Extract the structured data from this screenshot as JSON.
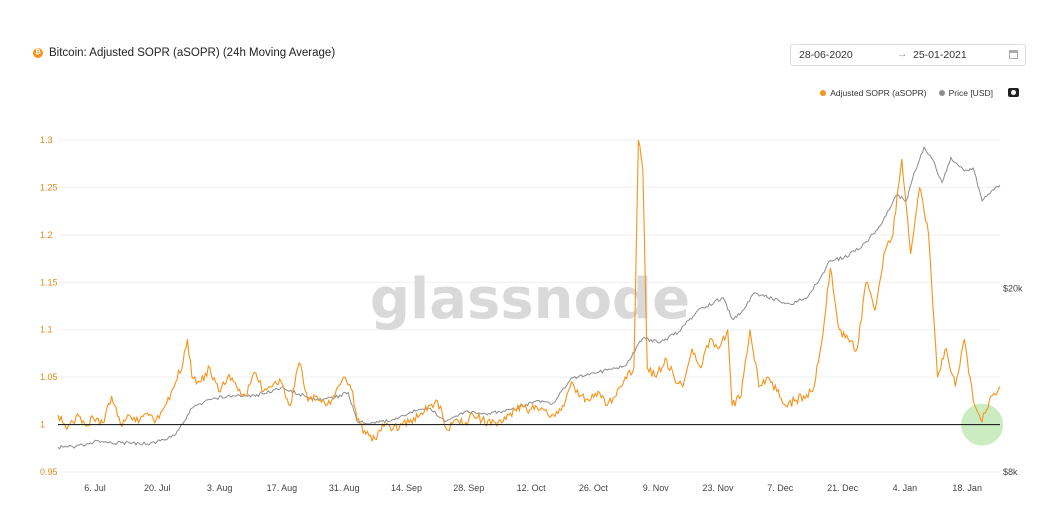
{
  "header": {
    "title": "Bitcoin: Adjusted SOPR (aSOPR) (24h Moving Average)",
    "btc_symbol": "₿"
  },
  "date_range": {
    "start": "28-06-2020",
    "arrow": "→",
    "end": "25-01-2021"
  },
  "watermark": "glassnode",
  "colors": {
    "sopr": "#f7931a",
    "price": "#8c8c8c",
    "baseline": "#222222",
    "highlight": "#9fdc8c",
    "axis_left": "#e08a1a"
  },
  "chart_data": {
    "type": "line",
    "title": "Bitcoin: Adjusted SOPR (aSOPR) (24h Moving Average)",
    "x_range": [
      "2020-06-28",
      "2021-01-25"
    ],
    "x_ticks": [
      "6. Jul",
      "20. Jul",
      "3. Aug",
      "17. Aug",
      "31. Aug",
      "14. Sep",
      "28. Sep",
      "12. Oct",
      "26. Oct",
      "9. Nov",
      "23. Nov",
      "7. Dec",
      "21. Dec",
      "4. Jan",
      "18. Jan"
    ],
    "y_left": {
      "ticks": [
        "0.95",
        "1",
        "1.05",
        "1.1",
        "1.15",
        "1.2",
        "1.25",
        "1.3"
      ],
      "ylim": [
        0.95,
        1.3
      ]
    },
    "y_right": {
      "ticks": [
        "$8k",
        "$20k"
      ],
      "ylim": [
        8000,
        42000
      ],
      "scale": "log"
    },
    "baseline": 1,
    "legend": {
      "placement": "top-right"
    },
    "grid": "horizontal",
    "highlight": {
      "x": "2021-01-21",
      "y": 1.0
    },
    "series": [
      {
        "name": "Adjusted SOPR (aSOPR)",
        "axis": "left",
        "points": [
          [
            "2020-06-28",
            1.01
          ],
          [
            "2020-06-30",
            0.995
          ],
          [
            "2020-07-02",
            1.008
          ],
          [
            "2020-07-04",
            1.0
          ],
          [
            "2020-07-06",
            1.006
          ],
          [
            "2020-07-08",
            1.002
          ],
          [
            "2020-07-10",
            1.03
          ],
          [
            "2020-07-12",
            1.0
          ],
          [
            "2020-07-14",
            1.01
          ],
          [
            "2020-07-16",
            1.002
          ],
          [
            "2020-07-18",
            1.012
          ],
          [
            "2020-07-20",
            1.005
          ],
          [
            "2020-07-22",
            1.02
          ],
          [
            "2020-07-24",
            1.04
          ],
          [
            "2020-07-26",
            1.065
          ],
          [
            "2020-07-27",
            1.09
          ],
          [
            "2020-07-28",
            1.05
          ],
          [
            "2020-07-30",
            1.045
          ],
          [
            "2020-08-01",
            1.06
          ],
          [
            "2020-08-03",
            1.035
          ],
          [
            "2020-08-05",
            1.05
          ],
          [
            "2020-08-07",
            1.04
          ],
          [
            "2020-08-09",
            1.03
          ],
          [
            "2020-08-11",
            1.055
          ],
          [
            "2020-08-13",
            1.035
          ],
          [
            "2020-08-15",
            1.04
          ],
          [
            "2020-08-17",
            1.045
          ],
          [
            "2020-08-19",
            1.02
          ],
          [
            "2020-08-21",
            1.065
          ],
          [
            "2020-08-23",
            1.025
          ],
          [
            "2020-08-25",
            1.03
          ],
          [
            "2020-08-27",
            1.02
          ],
          [
            "2020-08-29",
            1.03
          ],
          [
            "2020-08-31",
            1.05
          ],
          [
            "2020-09-02",
            1.035
          ],
          [
            "2020-09-03",
            1.005
          ],
          [
            "2020-09-05",
            0.99
          ],
          [
            "2020-09-07",
            0.985
          ],
          [
            "2020-09-09",
            0.998
          ],
          [
            "2020-09-11",
            0.995
          ],
          [
            "2020-09-13",
            1.0
          ],
          [
            "2020-09-15",
            1.005
          ],
          [
            "2020-09-17",
            1.01
          ],
          [
            "2020-09-19",
            1.02
          ],
          [
            "2020-09-21",
            1.025
          ],
          [
            "2020-09-23",
            0.995
          ],
          [
            "2020-09-25",
            1.005
          ],
          [
            "2020-09-27",
            1.0
          ],
          [
            "2020-09-29",
            1.01
          ],
          [
            "2020-10-01",
            1.005
          ],
          [
            "2020-10-03",
            1.0
          ],
          [
            "2020-10-05",
            1.005
          ],
          [
            "2020-10-07",
            1.01
          ],
          [
            "2020-10-09",
            1.02
          ],
          [
            "2020-10-11",
            1.015
          ],
          [
            "2020-10-13",
            1.02
          ],
          [
            "2020-10-15",
            1.015
          ],
          [
            "2020-10-17",
            1.01
          ],
          [
            "2020-10-19",
            1.02
          ],
          [
            "2020-10-21",
            1.045
          ],
          [
            "2020-10-23",
            1.03
          ],
          [
            "2020-10-25",
            1.025
          ],
          [
            "2020-10-27",
            1.035
          ],
          [
            "2020-10-29",
            1.02
          ],
          [
            "2020-10-31",
            1.03
          ],
          [
            "2020-11-02",
            1.05
          ],
          [
            "2020-11-04",
            1.06
          ],
          [
            "2020-11-05",
            1.3
          ],
          [
            "2020-11-06",
            1.27
          ],
          [
            "2020-11-07",
            1.06
          ],
          [
            "2020-11-09",
            1.05
          ],
          [
            "2020-11-11",
            1.07
          ],
          [
            "2020-11-13",
            1.05
          ],
          [
            "2020-11-15",
            1.04
          ],
          [
            "2020-11-17",
            1.08
          ],
          [
            "2020-11-19",
            1.06
          ],
          [
            "2020-11-21",
            1.09
          ],
          [
            "2020-11-23",
            1.08
          ],
          [
            "2020-11-25",
            1.1
          ],
          [
            "2020-11-26",
            1.02
          ],
          [
            "2020-11-28",
            1.03
          ],
          [
            "2020-11-30",
            1.1
          ],
          [
            "2020-12-02",
            1.04
          ],
          [
            "2020-12-04",
            1.05
          ],
          [
            "2020-12-06",
            1.035
          ],
          [
            "2020-12-08",
            1.02
          ],
          [
            "2020-12-10",
            1.025
          ],
          [
            "2020-12-12",
            1.03
          ],
          [
            "2020-12-14",
            1.035
          ],
          [
            "2020-12-16",
            1.085
          ],
          [
            "2020-12-18",
            1.165
          ],
          [
            "2020-12-20",
            1.1
          ],
          [
            "2020-12-22",
            1.09
          ],
          [
            "2020-12-24",
            1.08
          ],
          [
            "2020-12-26",
            1.15
          ],
          [
            "2020-12-28",
            1.12
          ],
          [
            "2020-12-30",
            1.18
          ],
          [
            "2021-01-01",
            1.2
          ],
          [
            "2021-01-03",
            1.28
          ],
          [
            "2021-01-05",
            1.18
          ],
          [
            "2021-01-07",
            1.25
          ],
          [
            "2021-01-09",
            1.2
          ],
          [
            "2021-01-11",
            1.05
          ],
          [
            "2021-01-13",
            1.08
          ],
          [
            "2021-01-15",
            1.04
          ],
          [
            "2021-01-17",
            1.09
          ],
          [
            "2021-01-19",
            1.025
          ],
          [
            "2021-01-21",
            1.003
          ],
          [
            "2021-01-23",
            1.03
          ],
          [
            "2021-01-25",
            1.04
          ]
        ]
      },
      {
        "name": "Price [USD]",
        "axis": "right",
        "points": [
          [
            "2020-06-28",
            9050
          ],
          [
            "2020-07-02",
            9100
          ],
          [
            "2020-07-06",
            9300
          ],
          [
            "2020-07-10",
            9250
          ],
          [
            "2020-07-14",
            9250
          ],
          [
            "2020-07-18",
            9200
          ],
          [
            "2020-07-22",
            9400
          ],
          [
            "2020-07-24",
            9600
          ],
          [
            "2020-07-26",
            10200
          ],
          [
            "2020-07-28",
            11000
          ],
          [
            "2020-08-01",
            11500
          ],
          [
            "2020-08-05",
            11700
          ],
          [
            "2020-08-09",
            11700
          ],
          [
            "2020-08-13",
            11800
          ],
          [
            "2020-08-17",
            12200
          ],
          [
            "2020-08-21",
            11800
          ],
          [
            "2020-08-25",
            11500
          ],
          [
            "2020-08-29",
            11600
          ],
          [
            "2020-09-01",
            11900
          ],
          [
            "2020-09-03",
            10300
          ],
          [
            "2020-09-07",
            10200
          ],
          [
            "2020-09-11",
            10400
          ],
          [
            "2020-09-15",
            10800
          ],
          [
            "2020-09-19",
            11000
          ],
          [
            "2020-09-23",
            10300
          ],
          [
            "2020-09-27",
            10800
          ],
          [
            "2020-10-01",
            10700
          ],
          [
            "2020-10-05",
            10800
          ],
          [
            "2020-10-09",
            11000
          ],
          [
            "2020-10-13",
            11400
          ],
          [
            "2020-10-17",
            11300
          ],
          [
            "2020-10-21",
            12800
          ],
          [
            "2020-10-25",
            13000
          ],
          [
            "2020-10-29",
            13300
          ],
          [
            "2020-11-02",
            13600
          ],
          [
            "2020-11-06",
            15600
          ],
          [
            "2020-11-10",
            15300
          ],
          [
            "2020-11-14",
            16100
          ],
          [
            "2020-11-18",
            17800
          ],
          [
            "2020-11-22",
            18700
          ],
          [
            "2020-11-24",
            19100
          ],
          [
            "2020-11-26",
            17200
          ],
          [
            "2020-11-28",
            17700
          ],
          [
            "2020-12-01",
            19600
          ],
          [
            "2020-12-05",
            19000
          ],
          [
            "2020-12-09",
            18500
          ],
          [
            "2020-12-13",
            19200
          ],
          [
            "2020-12-16",
            21300
          ],
          [
            "2020-12-18",
            23000
          ],
          [
            "2020-12-21",
            23300
          ],
          [
            "2020-12-25",
            24600
          ],
          [
            "2020-12-29",
            27300
          ],
          [
            "2021-01-02",
            32000
          ],
          [
            "2021-01-04",
            31000
          ],
          [
            "2021-01-06",
            36000
          ],
          [
            "2021-01-08",
            40500
          ],
          [
            "2021-01-10",
            38000
          ],
          [
            "2021-01-12",
            34000
          ],
          [
            "2021-01-14",
            38500
          ],
          [
            "2021-01-17",
            36000
          ],
          [
            "2021-01-19",
            36500
          ],
          [
            "2021-01-21",
            31000
          ],
          [
            "2021-01-23",
            32500
          ],
          [
            "2021-01-25",
            33500
          ]
        ]
      }
    ]
  }
}
